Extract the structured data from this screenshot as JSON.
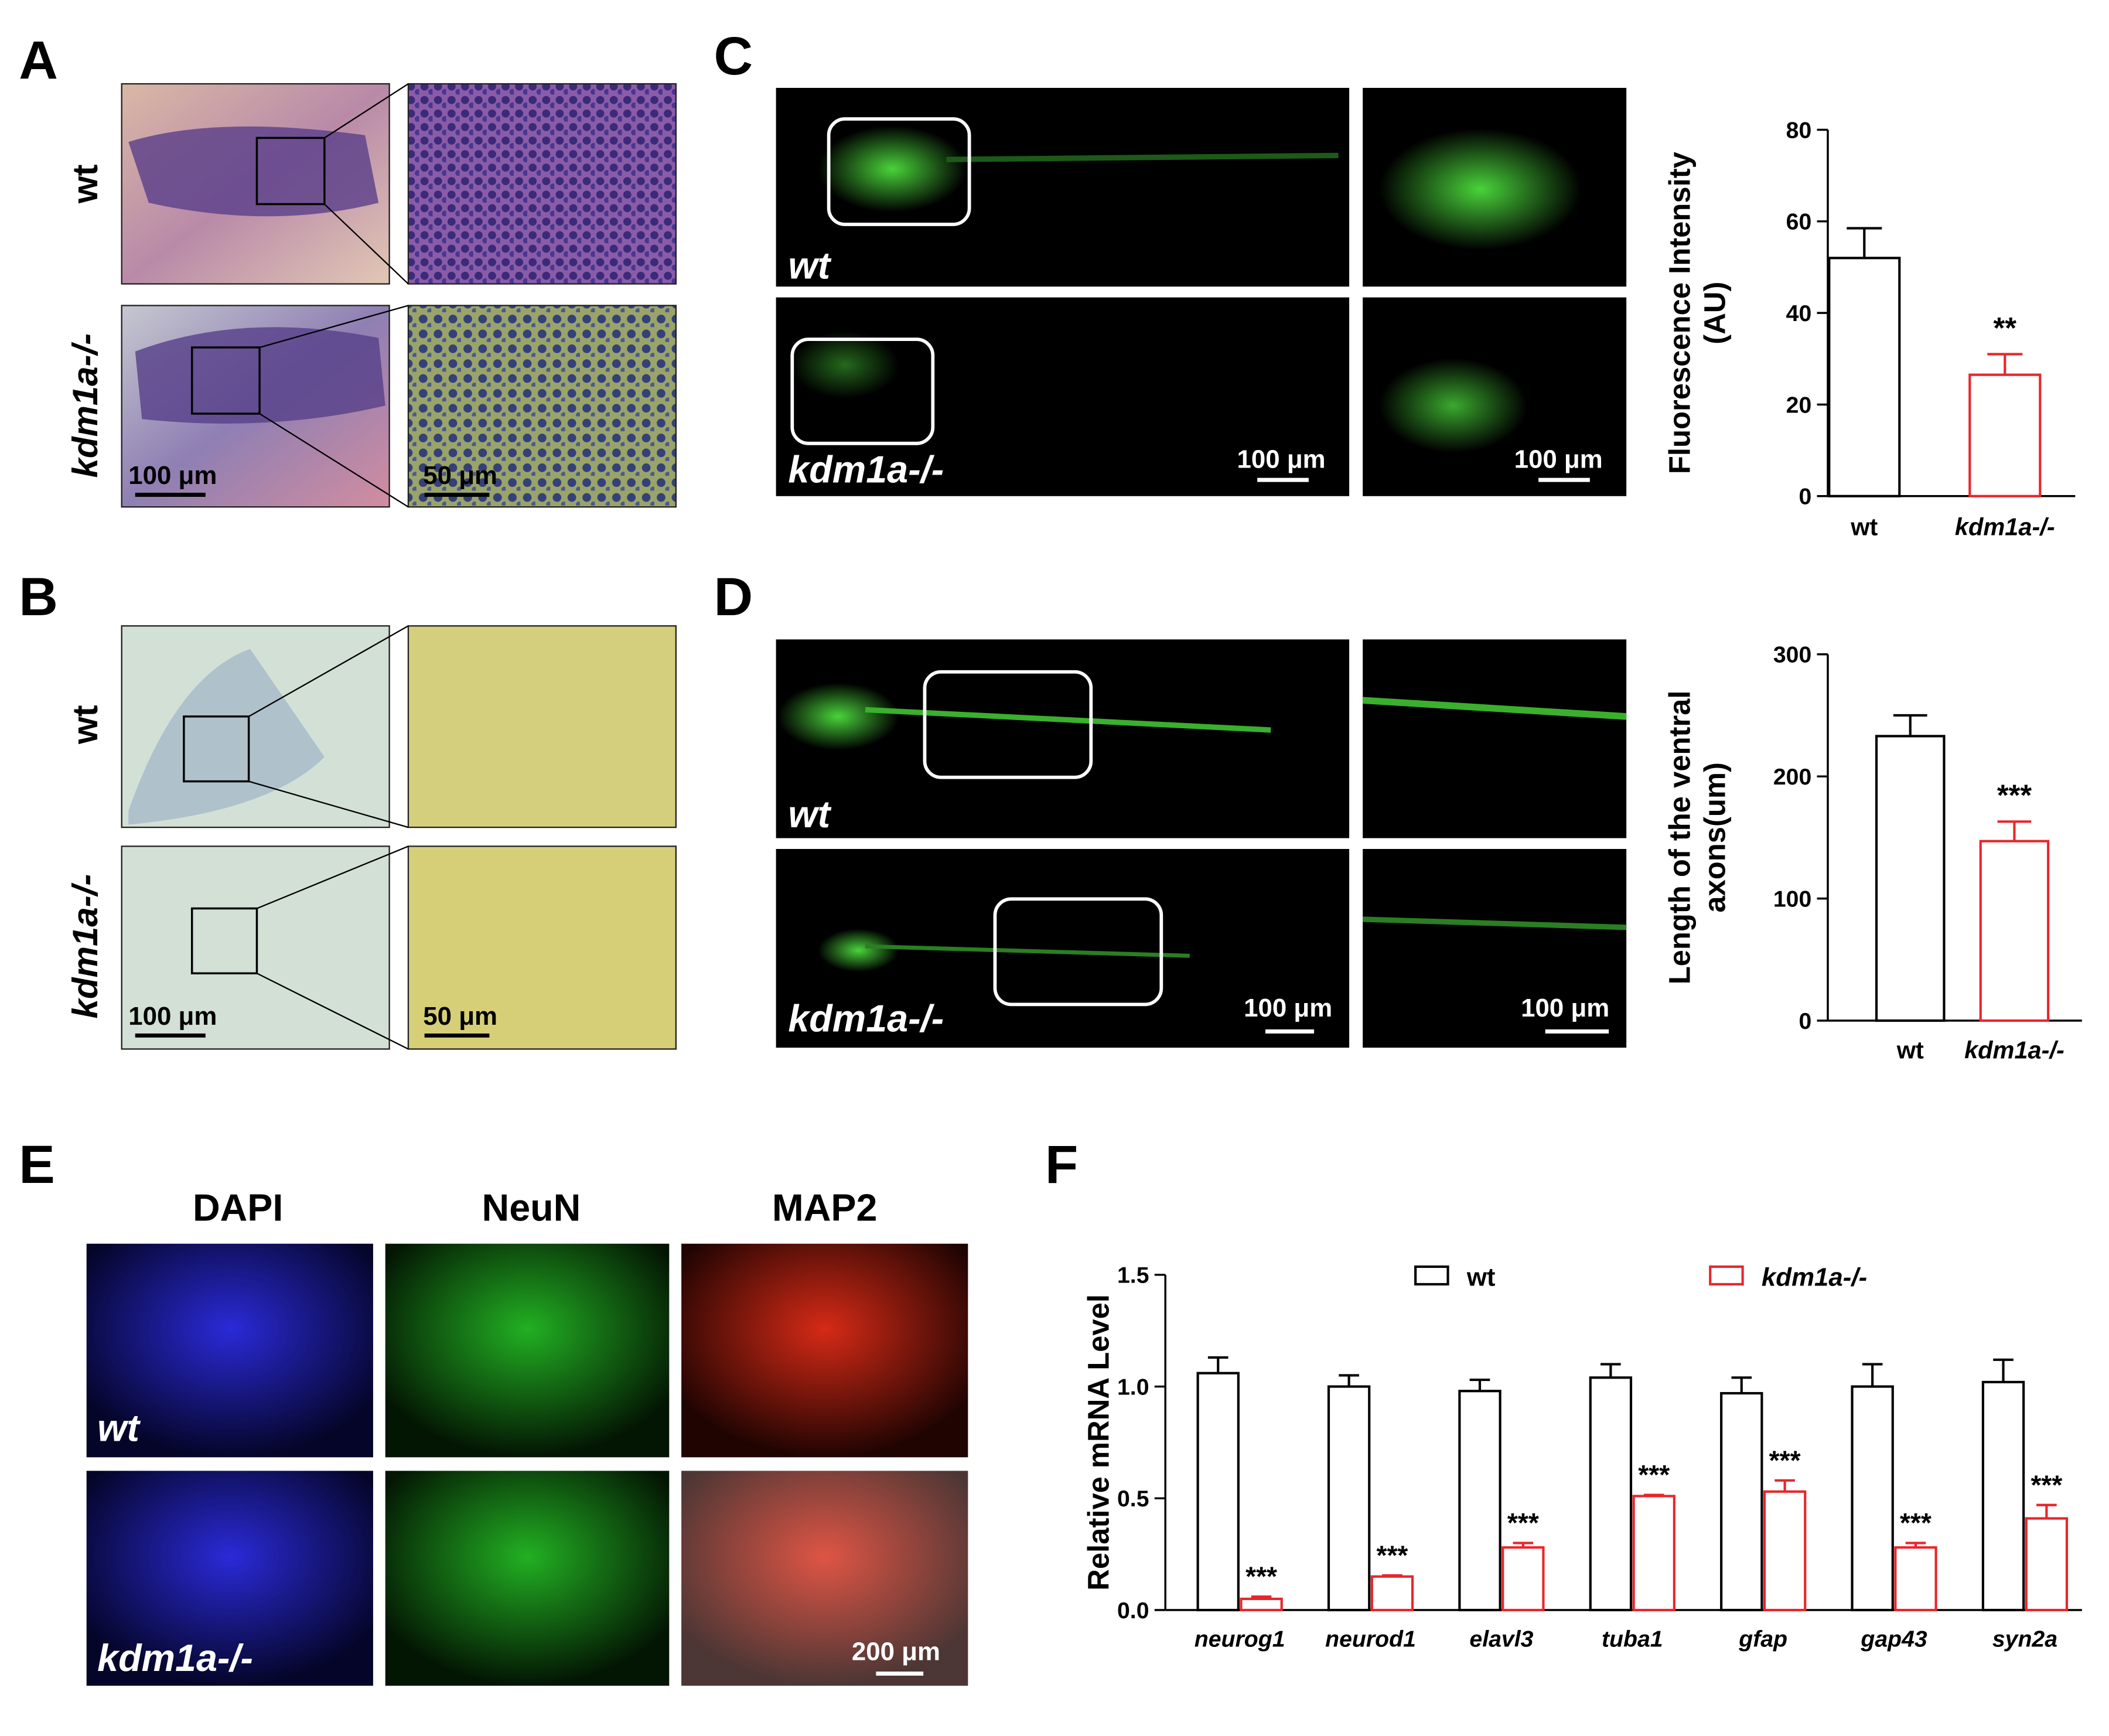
{
  "panels": {
    "A": {
      "label": "A",
      "rows": [
        "wt",
        "kdm1a-/-"
      ],
      "scale": [
        "100 μm",
        "50 μm"
      ]
    },
    "B": {
      "label": "B",
      "rows": [
        "wt",
        "kdm1a-/-"
      ],
      "scale": [
        "100 μm",
        "50 μm"
      ]
    },
    "C": {
      "label": "C",
      "rows": [
        "wt",
        "kdm1a-/-"
      ],
      "scale": [
        "100 μm",
        "100 μm"
      ]
    },
    "D": {
      "label": "D",
      "rows": [
        "wt",
        "kdm1a-/-"
      ],
      "scale": [
        "100 μm",
        "100 μm"
      ]
    },
    "E": {
      "label": "E",
      "columns": [
        "DAPI",
        "NeuN",
        "MAP2"
      ],
      "rows": [
        "wt",
        "kdm1a-/-"
      ],
      "scale": "200 μm"
    },
    "F": {
      "label": "F"
    }
  },
  "chart_data": [
    {
      "type": "bar",
      "categories": [
        "wt",
        "kdm1a-/-"
      ],
      "values": [
        52,
        26.5
      ],
      "errors": [
        6.5,
        4.5
      ],
      "colors": [
        "#000000",
        "#e8262b"
      ],
      "ylabel": [
        "Fluorescence Intensity",
        "(AU)"
      ],
      "ylim": [
        0,
        80
      ],
      "yticks": [
        0,
        20,
        40,
        60,
        80
      ],
      "annotations": [
        null,
        "**"
      ]
    },
    {
      "type": "bar",
      "categories": [
        "wt",
        "kdm1a-/-"
      ],
      "values": [
        233,
        147
      ],
      "errors": [
        17,
        16
      ],
      "colors": [
        "#000000",
        "#e8262b"
      ],
      "ylabel": [
        "Length of the ventral",
        "axons(um)"
      ],
      "ylim": [
        0,
        300
      ],
      "yticks": [
        0,
        100,
        200,
        300
      ],
      "annotations": [
        null,
        "***"
      ]
    },
    {
      "type": "grouped-bar",
      "categories": [
        "neurog1",
        "neurod1",
        "elavl3",
        "tuba1",
        "gfap",
        "gap43",
        "syn2a"
      ],
      "series": [
        {
          "name": "wt",
          "color": "#000000",
          "values": [
            1.06,
            1.0,
            0.98,
            1.04,
            0.97,
            1.0,
            1.02
          ],
          "errors": [
            0.07,
            0.05,
            0.05,
            0.06,
            0.07,
            0.1,
            0.1
          ]
        },
        {
          "name": "kdm1a-/-",
          "color": "#e8262b",
          "values": [
            0.05,
            0.15,
            0.28,
            0.51,
            0.53,
            0.28,
            0.41
          ],
          "errors": [
            0.01,
            0.005,
            0.02,
            0.005,
            0.05,
            0.02,
            0.06
          ]
        }
      ],
      "ylabel": [
        "Relative mRNA Level"
      ],
      "ylim": [
        0,
        1.5
      ],
      "yticks": [
        {
          "value": 0,
          "label": "0.0"
        },
        0.5,
        {
          "value": 1,
          "label": "1.0"
        },
        1.5
      ],
      "annotations": [
        "***",
        "***",
        "***",
        "***",
        "***",
        "***",
        "***"
      ]
    }
  ]
}
